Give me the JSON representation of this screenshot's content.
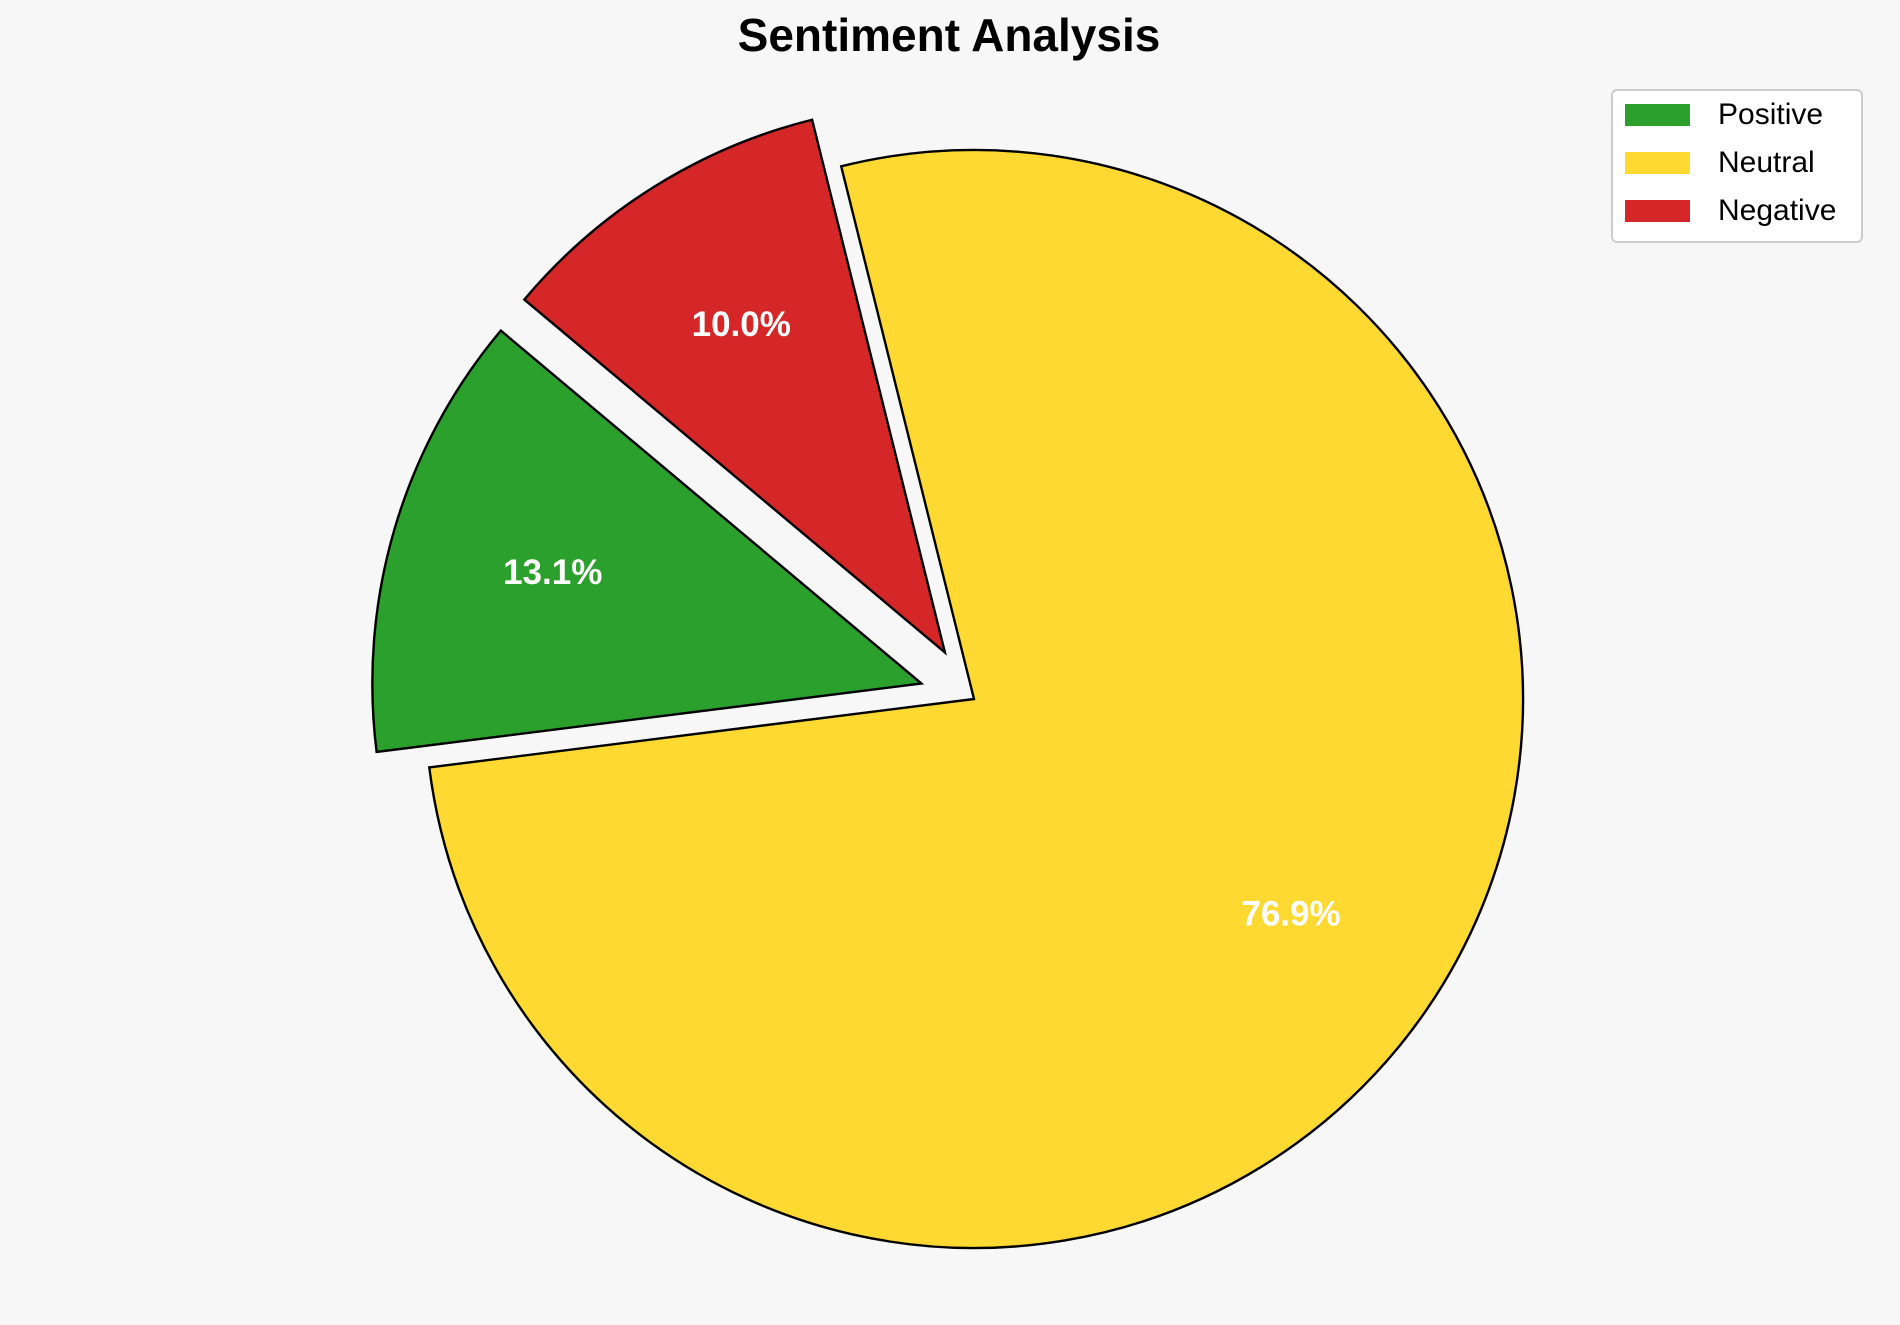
{
  "chart_data": {
    "type": "pie",
    "title": "Sentiment Analysis",
    "categories": [
      "Positive",
      "Neutral",
      "Negative"
    ],
    "values": [
      13.1,
      76.9,
      10.0
    ],
    "value_labels": [
      "13.1%",
      "76.9%",
      "10.0%"
    ],
    "colors": [
      "#2ca02c",
      "#fdd931",
      "#d62728"
    ],
    "start_angle": 140,
    "explode": [
      0.1,
      0,
      0.1
    ],
    "legend": "upper right"
  }
}
